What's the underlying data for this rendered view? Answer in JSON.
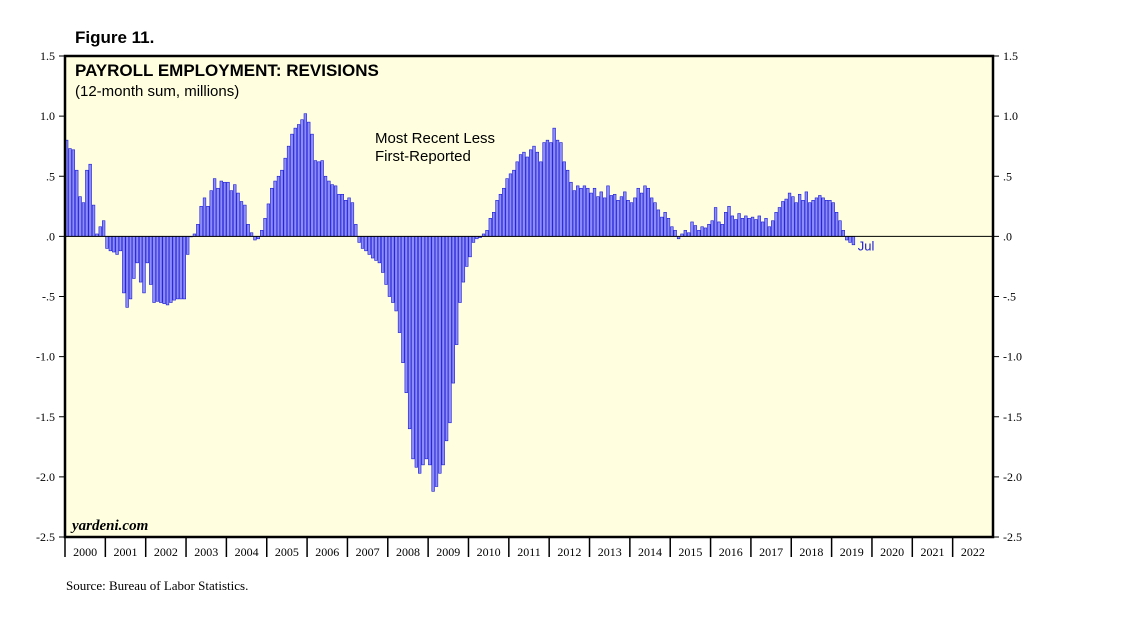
{
  "figure_label": "Figure 11.",
  "source": "Source: Bureau of Labor Statistics.",
  "chart_data": {
    "type": "bar",
    "title": "PAYROLL EMPLOYMENT: REVISIONS",
    "subtitle": "(12-month sum, millions)",
    "annotation_lines": [
      "Most Recent Less",
      "First-Reported"
    ],
    "last_point_label": "Jul",
    "watermark": "yardeni.com",
    "color": "#8c8cff",
    "edge_color": "#1a1ad0",
    "background": "#ffffe0",
    "xlim": [
      2000,
      2023
    ],
    "xticks": [
      2000,
      2001,
      2002,
      2003,
      2004,
      2005,
      2006,
      2007,
      2008,
      2009,
      2010,
      2011,
      2012,
      2013,
      2014,
      2015,
      2016,
      2017,
      2018,
      2019,
      2020,
      2021,
      2022
    ],
    "ylim": [
      -2.5,
      1.5
    ],
    "yticks": [
      {
        "value": 1.5,
        "label": "1.5"
      },
      {
        "value": 1.0,
        "label": "1.0"
      },
      {
        "value": 0.5,
        "label": ".5"
      },
      {
        "value": 0,
        "label": ".0"
      },
      {
        "value": -0.5,
        "label": "-.5"
      },
      {
        "value": -1.0,
        "label": "-1.0"
      },
      {
        "value": -1.5,
        "label": "-1.5"
      },
      {
        "value": -2.0,
        "label": "-2.0"
      },
      {
        "value": -2.5,
        "label": "-2.5"
      }
    ],
    "right_axis": true,
    "x": [
      "2000-01",
      "2000-02",
      "2000-03",
      "2000-04",
      "2000-05",
      "2000-06",
      "2000-07",
      "2000-08",
      "2000-09",
      "2000-10",
      "2000-11",
      "2000-12",
      "2001-01",
      "2001-02",
      "2001-03",
      "2001-04",
      "2001-05",
      "2001-06",
      "2001-07",
      "2001-08",
      "2001-09",
      "2001-10",
      "2001-11",
      "2001-12",
      "2002-01",
      "2002-02",
      "2002-03",
      "2002-04",
      "2002-05",
      "2002-06",
      "2002-07",
      "2002-08",
      "2002-09",
      "2002-10",
      "2002-11",
      "2002-12",
      "2003-01",
      "2003-02",
      "2003-03",
      "2003-04",
      "2003-05",
      "2003-06",
      "2003-07",
      "2003-08",
      "2003-09",
      "2003-10",
      "2003-11",
      "2003-12",
      "2004-01",
      "2004-02",
      "2004-03",
      "2004-04",
      "2004-05",
      "2004-06",
      "2004-07",
      "2004-08",
      "2004-09",
      "2004-10",
      "2004-11",
      "2004-12",
      "2005-01",
      "2005-02",
      "2005-03",
      "2005-04",
      "2005-05",
      "2005-06",
      "2005-07",
      "2005-08",
      "2005-09",
      "2005-10",
      "2005-11",
      "2005-12",
      "2006-01",
      "2006-02",
      "2006-03",
      "2006-04",
      "2006-05",
      "2006-06",
      "2006-07",
      "2006-08",
      "2006-09",
      "2006-10",
      "2006-11",
      "2006-12",
      "2007-01",
      "2007-02",
      "2007-03",
      "2007-04",
      "2007-05",
      "2007-06",
      "2007-07",
      "2007-08",
      "2007-09",
      "2007-10",
      "2007-11",
      "2007-12",
      "2008-01",
      "2008-02",
      "2008-03",
      "2008-04",
      "2008-05",
      "2008-06",
      "2008-07",
      "2008-08",
      "2008-09",
      "2008-10",
      "2008-11",
      "2008-12",
      "2009-01",
      "2009-02",
      "2009-03",
      "2009-04",
      "2009-05",
      "2009-06",
      "2009-07",
      "2009-08",
      "2009-09",
      "2009-10",
      "2009-11",
      "2009-12",
      "2010-01",
      "2010-02",
      "2010-03",
      "2010-04",
      "2010-05",
      "2010-06",
      "2010-07",
      "2010-08",
      "2010-09",
      "2010-10",
      "2010-11",
      "2010-12",
      "2011-01",
      "2011-02",
      "2011-03",
      "2011-04",
      "2011-05",
      "2011-06",
      "2011-07",
      "2011-08",
      "2011-09",
      "2011-10",
      "2011-11",
      "2011-12",
      "2012-01",
      "2012-02",
      "2012-03",
      "2012-04",
      "2012-05",
      "2012-06",
      "2012-07",
      "2012-08",
      "2012-09",
      "2012-10",
      "2012-11",
      "2012-12",
      "2013-01",
      "2013-02",
      "2013-03",
      "2013-04",
      "2013-05",
      "2013-06",
      "2013-07",
      "2013-08",
      "2013-09",
      "2013-10",
      "2013-11",
      "2013-12",
      "2014-01",
      "2014-02",
      "2014-03",
      "2014-04",
      "2014-05",
      "2014-06",
      "2014-07",
      "2014-08",
      "2014-09",
      "2014-10",
      "2014-11",
      "2014-12",
      "2015-01",
      "2015-02",
      "2015-03",
      "2015-04",
      "2015-05",
      "2015-06",
      "2015-07",
      "2015-08",
      "2015-09",
      "2015-10",
      "2015-11",
      "2015-12",
      "2016-01",
      "2016-02",
      "2016-03",
      "2016-04",
      "2016-05",
      "2016-06",
      "2016-07",
      "2016-08",
      "2016-09",
      "2016-10",
      "2016-11",
      "2016-12",
      "2017-01",
      "2017-02",
      "2017-03",
      "2017-04",
      "2017-05",
      "2017-06",
      "2017-07",
      "2017-08",
      "2017-09",
      "2017-10",
      "2017-11",
      "2017-12",
      "2018-01",
      "2018-02",
      "2018-03",
      "2018-04",
      "2018-05",
      "2018-06",
      "2018-07",
      "2018-08",
      "2018-09",
      "2018-10",
      "2018-11",
      "2018-12",
      "2019-01",
      "2019-02",
      "2019-03",
      "2019-04",
      "2019-05",
      "2019-06",
      "2019-07"
    ],
    "values": [
      0.8,
      0.73,
      0.72,
      0.55,
      0.33,
      0.28,
      0.55,
      0.6,
      0.26,
      0.02,
      0.08,
      0.13,
      -0.1,
      -0.12,
      -0.13,
      -0.15,
      -0.12,
      -0.47,
      -0.59,
      -0.52,
      -0.35,
      -0.22,
      -0.38,
      -0.47,
      -0.22,
      -0.4,
      -0.55,
      -0.54,
      -0.55,
      -0.56,
      -0.57,
      -0.55,
      -0.53,
      -0.52,
      -0.52,
      -0.52,
      -0.15,
      0.0,
      0.02,
      0.1,
      0.25,
      0.32,
      0.25,
      0.38,
      0.48,
      0.4,
      0.46,
      0.45,
      0.45,
      0.38,
      0.43,
      0.36,
      0.29,
      0.26,
      0.1,
      0.03,
      -0.03,
      -0.02,
      0.05,
      0.15,
      0.27,
      0.4,
      0.46,
      0.5,
      0.55,
      0.65,
      0.75,
      0.85,
      0.9,
      0.93,
      0.97,
      1.02,
      0.95,
      0.85,
      0.63,
      0.62,
      0.63,
      0.5,
      0.46,
      0.43,
      0.42,
      0.35,
      0.35,
      0.3,
      0.32,
      0.28,
      0.1,
      -0.05,
      -0.1,
      -0.12,
      -0.15,
      -0.18,
      -0.2,
      -0.22,
      -0.3,
      -0.4,
      -0.5,
      -0.55,
      -0.62,
      -0.8,
      -1.05,
      -1.3,
      -1.6,
      -1.85,
      -1.92,
      -1.97,
      -1.9,
      -1.85,
      -1.9,
      -2.12,
      -2.08,
      -1.97,
      -1.9,
      -1.7,
      -1.55,
      -1.22,
      -0.9,
      -0.55,
      -0.38,
      -0.25,
      -0.17,
      -0.05,
      -0.02,
      -0.01,
      0.02,
      0.05,
      0.15,
      0.2,
      0.3,
      0.35,
      0.4,
      0.48,
      0.52,
      0.55,
      0.62,
      0.68,
      0.7,
      0.66,
      0.72,
      0.75,
      0.7,
      0.62,
      0.78,
      0.8,
      0.78,
      0.9,
      0.8,
      0.78,
      0.62,
      0.55,
      0.45,
      0.38,
      0.42,
      0.4,
      0.42,
      0.4,
      0.36,
      0.4,
      0.33,
      0.37,
      0.32,
      0.42,
      0.34,
      0.35,
      0.3,
      0.33,
      0.37,
      0.3,
      0.28,
      0.32,
      0.4,
      0.36,
      0.42,
      0.4,
      0.32,
      0.28,
      0.22,
      0.16,
      0.2,
      0.15,
      0.08,
      0.05,
      -0.02,
      0.02,
      0.05,
      0.03,
      0.12,
      0.09,
      0.05,
      0.08,
      0.07,
      0.1,
      0.13,
      0.24,
      0.12,
      0.1,
      0.2,
      0.25,
      0.17,
      0.14,
      0.19,
      0.15,
      0.17,
      0.15,
      0.16,
      0.14,
      0.17,
      0.12,
      0.15,
      0.08,
      0.13,
      0.2,
      0.24,
      0.29,
      0.31,
      0.36,
      0.33,
      0.28,
      0.35,
      0.3,
      0.37,
      0.28,
      0.3,
      0.32,
      0.34,
      0.32,
      0.3,
      0.3,
      0.28,
      0.2,
      0.13,
      0.05,
      -0.03,
      -0.05,
      -0.07
    ]
  }
}
